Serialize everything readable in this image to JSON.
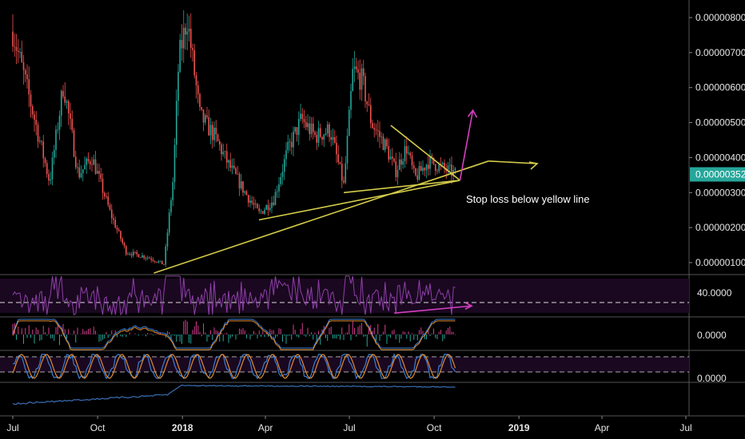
{
  "chart_data": {
    "type": "line",
    "style": "candlestick",
    "title": "",
    "x_ticks": [
      "Jul",
      "Oct",
      "2018",
      "Apr",
      "Jul",
      "Oct",
      "2019",
      "Apr",
      "Jul"
    ],
    "price": {
      "y_ticks": [
        "0.00000800",
        "0.00000700",
        "0.00000600",
        "0.00000500",
        "0.00000400",
        "0.00000300",
        "0.00000200",
        "0.00000100"
      ],
      "ylim": [
        6.5e-07,
        8.55e-06
      ],
      "current_price": "0.00000352",
      "current_price_color": "#26a69a",
      "up_color": "#26a69a",
      "down_color": "#ef5350",
      "anchors": [
        [
          "2017-07-01",
          7.6e-06
        ],
        [
          "2017-07-20",
          5.6e-06
        ],
        [
          "2017-08-10",
          3.3e-06
        ],
        [
          "2017-08-25",
          6.1e-06
        ],
        [
          "2017-09-10",
          3.5e-06
        ],
        [
          "2017-09-25",
          4e-06
        ],
        [
          "2017-10-15",
          2.4e-06
        ],
        [
          "2017-11-01",
          1.3e-06
        ],
        [
          "2017-11-25",
          1.15e-06
        ],
        [
          "2017-12-12",
          9.5e-07
        ],
        [
          "2017-12-22",
          3.4e-06
        ],
        [
          "2017-12-28",
          6.8e-06
        ],
        [
          "2018-01-06",
          8e-06
        ],
        [
          "2018-01-20",
          5.2e-06
        ],
        [
          "2018-02-05",
          4.6e-06
        ],
        [
          "2018-02-20",
          3.8e-06
        ],
        [
          "2018-03-10",
          3e-06
        ],
        [
          "2018-03-25",
          2.4e-06
        ],
        [
          "2018-04-10",
          2.8e-06
        ],
        [
          "2018-04-25",
          4.2e-06
        ],
        [
          "2018-05-10",
          5.1e-06
        ],
        [
          "2018-05-25",
          4.6e-06
        ],
        [
          "2018-06-10",
          4.8e-06
        ],
        [
          "2018-06-25",
          3.2e-06
        ],
        [
          "2018-07-05",
          6.5e-06
        ],
        [
          "2018-07-15",
          6.2e-06
        ],
        [
          "2018-07-25",
          5e-06
        ],
        [
          "2018-08-10",
          4.3e-06
        ],
        [
          "2018-08-20",
          3.6e-06
        ],
        [
          "2018-09-01",
          4.3e-06
        ],
        [
          "2018-09-10",
          3.4e-06
        ],
        [
          "2018-09-25",
          3.9e-06
        ],
        [
          "2018-10-10",
          3.7e-06
        ],
        [
          "2018-10-25",
          3.52e-06
        ]
      ]
    },
    "annotations": {
      "text": "Stop loss below yellow line",
      "trendline_color": "#d4cc4a",
      "arrow_color": "#d43fc0",
      "trendlines": [
        [
          [
            "2017-12-01",
            7e-07
          ],
          [
            "2018-11-29",
            3.9e-06
          ]
        ],
        [
          [
            "2018-03-25",
            2.22e-06
          ],
          [
            "2018-10-29",
            3.35e-06
          ]
        ],
        [
          [
            "2018-06-25",
            3e-06
          ],
          [
            "2018-10-29",
            3.35e-06
          ]
        ],
        [
          [
            "2018-08-15",
            4.92e-06
          ],
          [
            "2018-10-29",
            3.35e-06
          ]
        ]
      ],
      "arrows": [
        [
          [
            "2018-10-29",
            3.35e-06
          ],
          [
            "2018-11-12",
            5.35e-06
          ]
        ]
      ]
    },
    "rsi": {
      "y_tick": "40.0000",
      "ylim": [
        20,
        80
      ],
      "level": 40,
      "series_color": "#8e3fa8",
      "divergence": [
        [
          "2018-08-10",
          22
        ],
        [
          "2018-11-15",
          35
        ]
      ]
    },
    "macd": {
      "y_tick": "0.0000"
    },
    "stoch": {
      "y_tick": "0.0000"
    },
    "obv": {
      "color": "#3a6fb5"
    }
  }
}
